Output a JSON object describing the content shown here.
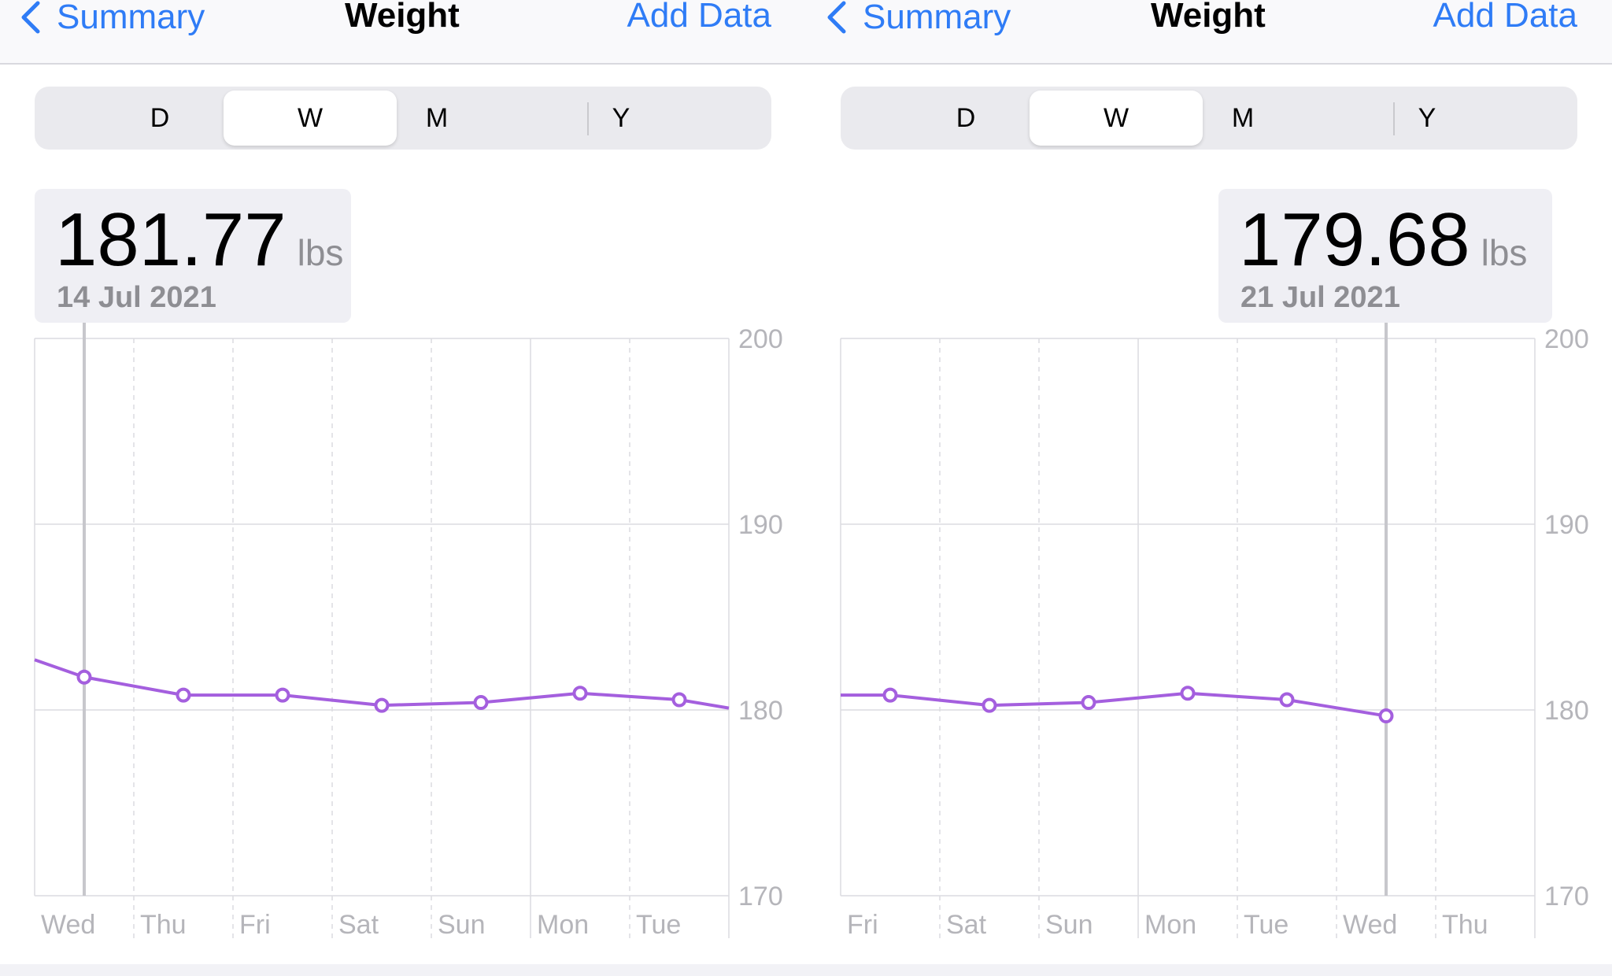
{
  "colors": {
    "accent": "#2f7cf6",
    "series": "#a45fde",
    "grid": "#dcdce0",
    "axis_text": "#b5b5ba",
    "selection": "#c7c7cc"
  },
  "panels": [
    {
      "nav": {
        "back_icon": "chevron-left-icon",
        "back_label": "Summary",
        "title": "Weight",
        "add_label": "Add Data"
      },
      "segments": [
        {
          "label": "D",
          "active": false
        },
        {
          "label": "W",
          "active": true
        },
        {
          "label": "M",
          "active": false
        },
        {
          "label": "Y",
          "active": false
        }
      ],
      "readout": {
        "value": "181.77",
        "unit": "lbs",
        "date": "14 Jul 2021"
      }
    },
    {
      "nav": {
        "back_icon": "chevron-left-icon",
        "back_label": "Summary",
        "title": "Weight",
        "add_label": "Add Data"
      },
      "segments": [
        {
          "label": "D",
          "active": false
        },
        {
          "label": "W",
          "active": true
        },
        {
          "label": "M",
          "active": false
        },
        {
          "label": "Y",
          "active": false
        }
      ],
      "readout": {
        "value": "179.68",
        "unit": "lbs",
        "date": "21 Jul 2021"
      }
    }
  ],
  "chart_data": [
    {
      "type": "line",
      "x": [
        "Wed",
        "Thu",
        "Fri",
        "Sat",
        "Sun",
        "Mon",
        "Tue"
      ],
      "y": [
        181.77,
        180.8,
        180.8,
        180.25,
        180.4,
        180.9,
        180.55
      ],
      "line_start_y": 182.7,
      "line_end_y": 180.1,
      "y_ticks": [
        "200",
        "190",
        "180",
        "170"
      ],
      "ylim": [
        170,
        200
      ],
      "selected": "Wed",
      "grid": true
    },
    {
      "type": "line",
      "x": [
        "Fri",
        "Sat",
        "Sun",
        "Mon",
        "Tue",
        "Wed",
        "Thu"
      ],
      "y": [
        180.8,
        180.25,
        180.4,
        180.9,
        180.55,
        179.68,
        null
      ],
      "line_start_y": 180.8,
      "y_ticks": [
        "200",
        "190",
        "180",
        "170"
      ],
      "ylim": [
        170,
        200
      ],
      "selected": "Wed",
      "grid": true
    }
  ]
}
